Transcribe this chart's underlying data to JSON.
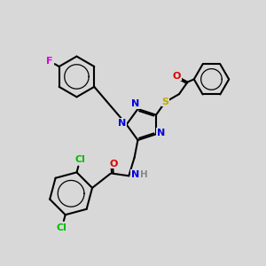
{
  "background_color": "#d8d8d8",
  "atom_colors": {
    "C": "#000000",
    "N": "#0000dd",
    "O": "#dd0000",
    "S": "#bbaa00",
    "F": "#dd00dd",
    "Cl": "#00bb00",
    "H": "#888888"
  },
  "bond_color": "#000000",
  "bond_lw": 1.5
}
